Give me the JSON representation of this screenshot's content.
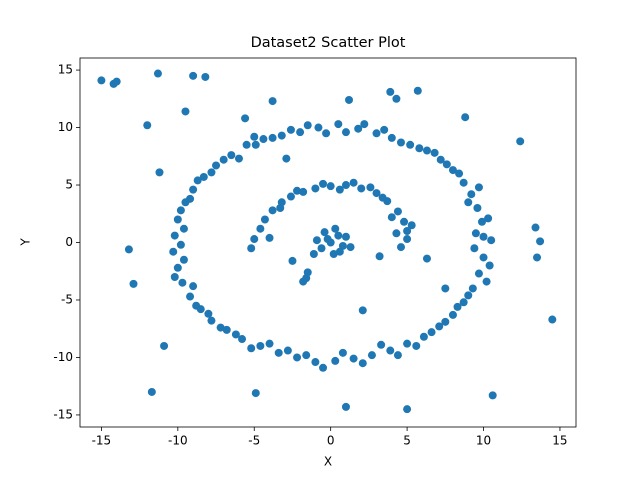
{
  "chart_data": {
    "type": "scatter",
    "title": "Dataset2 Scatter Plot",
    "xlabel": "X",
    "ylabel": "Y",
    "color": "#1f77b4",
    "x": [
      10,
      9.9,
      9.6,
      9.2,
      8.7,
      8,
      7.2,
      6.3,
      5.2,
      4,
      3,
      1.8,
      0.5,
      -0.8,
      -2,
      -3.2,
      -4.4,
      -5.5,
      -6.5,
      -7.5,
      -8.3,
      -9,
      -9.5,
      -10,
      -10.2,
      -10.3,
      -10,
      -9.7,
      -9.2,
      -8.5,
      -7.8,
      -6.8,
      -5.8,
      -4.6,
      -3.4,
      -2.2,
      -1,
      0.3,
      1.5,
      2.7,
      3.9,
      5,
      6.1,
      7.1,
      8,
      8.7,
      9.3,
      9.7,
      10,
      10.5,
      9.5,
      10.3,
      9,
      9.7,
      8.4,
      7.6,
      6.8,
      5.8,
      4.6,
      3.5,
      2.2,
      1,
      -0.3,
      -1.5,
      -2.6,
      -3.8,
      -5,
      -6,
      -7,
      -7.8,
      -8.7,
      -9.2,
      -9.8,
      -9.6,
      -9.8,
      -9.6,
      -10.2,
      -9,
      -8.8,
      -8,
      -7.2,
      -6.2,
      -5.2,
      -4,
      -2.8,
      -1.6,
      -0.5,
      0.8,
      2.1,
      3.3,
      4.4,
      5.6,
      6.6,
      7.5,
      8.3,
      9,
      10.2,
      10.4,
      9.4,
      -5.2,
      -5,
      -4.6,
      -4.3,
      -3.8,
      -3.2,
      -2.6,
      -1.8,
      -1,
      0,
      1,
      2,
      3,
      3.7,
      4.4,
      4.8,
      5,
      5,
      4.6,
      -4,
      -3.3,
      -2.2,
      -0.5,
      0.6,
      1.5,
      2.6,
      3.4,
      4,
      5.3,
      4.3,
      0,
      0.5,
      -0.4,
      0.8,
      -0.6,
      0.3,
      1,
      -0.9,
      0.2,
      -1.1,
      -1.5,
      -1.8,
      0.6,
      -0.2,
      1.3,
      -2.5,
      -15,
      -14.2,
      -14,
      -11.3,
      -9,
      -8.2,
      -9.5,
      -12,
      -11.2,
      -13.2,
      -12.9,
      -10.9,
      -11.7,
      -4.9,
      1,
      5,
      10.6,
      14.5,
      13.5,
      13.7,
      13.4,
      12.4,
      8.8,
      5.7,
      3.9,
      4.3,
      1.2,
      -3.8,
      -5.6,
      -4.9,
      -2.9,
      2.1,
      3.2,
      -1.6,
      6.3,
      7.5
    ],
    "y": [
      0.5,
      1.8,
      3,
      4.2,
      5.2,
      6.3,
      7.2,
      8,
      8.5,
      9.1,
      9.5,
      9.9,
      10.3,
      10,
      9.6,
      9.3,
      9,
      8.5,
      7.6,
      6.7,
      5.7,
      4.6,
      3.5,
      2,
      0.6,
      -0.8,
      -2.2,
      -3.5,
      -4.7,
      -5.8,
      -6.8,
      -7.6,
      -8.4,
      -9,
      -9.6,
      -10,
      -10.4,
      -10.3,
      -10.1,
      -9.8,
      -9.4,
      -8.8,
      -8.2,
      -7.3,
      -6.3,
      -5.2,
      -4,
      -2.7,
      -1.3,
      0.2,
      0.8,
      2.1,
      3.5,
      4.8,
      6,
      6.8,
      7.8,
      8.2,
      8.7,
      9.8,
      10.3,
      9.6,
      9.5,
      10.2,
      9.8,
      9.1,
      9.2,
      7.3,
      7.2,
      6.1,
      5.4,
      3.8,
      2.8,
      1.2,
      -0.2,
      -1.5,
      -3,
      -3.8,
      -5.5,
      -6.2,
      -7.4,
      -8,
      -9.2,
      -8.8,
      -9.4,
      -9.8,
      -10.9,
      -9.6,
      -10.5,
      -8.9,
      -9.8,
      -9,
      -7.8,
      -6.9,
      -5.6,
      -4.6,
      -3.4,
      -2,
      -0.5,
      -0.5,
      0.3,
      1.2,
      2,
      2.8,
      3.5,
      4,
      4.4,
      4.7,
      4.9,
      5,
      4.7,
      4.3,
      3.6,
      2.7,
      1.8,
      1,
      0.3,
      -0.4,
      0.4,
      3,
      4.5,
      5.1,
      4.6,
      5.2,
      4.8,
      3.9,
      2.2,
      1.5,
      0.8,
      0,
      0.6,
      0.9,
      -0.3,
      -0.5,
      1.2,
      0.5,
      0.2,
      -1,
      -1,
      -2.6,
      -3.4,
      -0.8,
      0.3,
      -0.4,
      -1.6,
      14.1,
      13.8,
      14,
      14.7,
      14.5,
      14.4,
      11.4,
      10.2,
      6.1,
      -0.6,
      -3.6,
      -9,
      -13,
      -13.1,
      -14.3,
      -14.5,
      -13.3,
      -6.7,
      -1.3,
      0.1,
      1.3,
      8.8,
      10.9,
      13.2,
      13.1,
      12.5,
      12.4,
      12.3,
      10.8,
      8.5,
      7.3,
      -5.9,
      -1.2,
      -3.1,
      -1.4,
      -4
    ],
    "xlim": [
      -16.4,
      16.05
    ],
    "ylim": [
      -16.05,
      16.05
    ],
    "xticks": [
      -15,
      -10,
      -5,
      0,
      5,
      10,
      15
    ],
    "yticks": [
      -15,
      -10,
      -5,
      0,
      5,
      10,
      15
    ]
  }
}
